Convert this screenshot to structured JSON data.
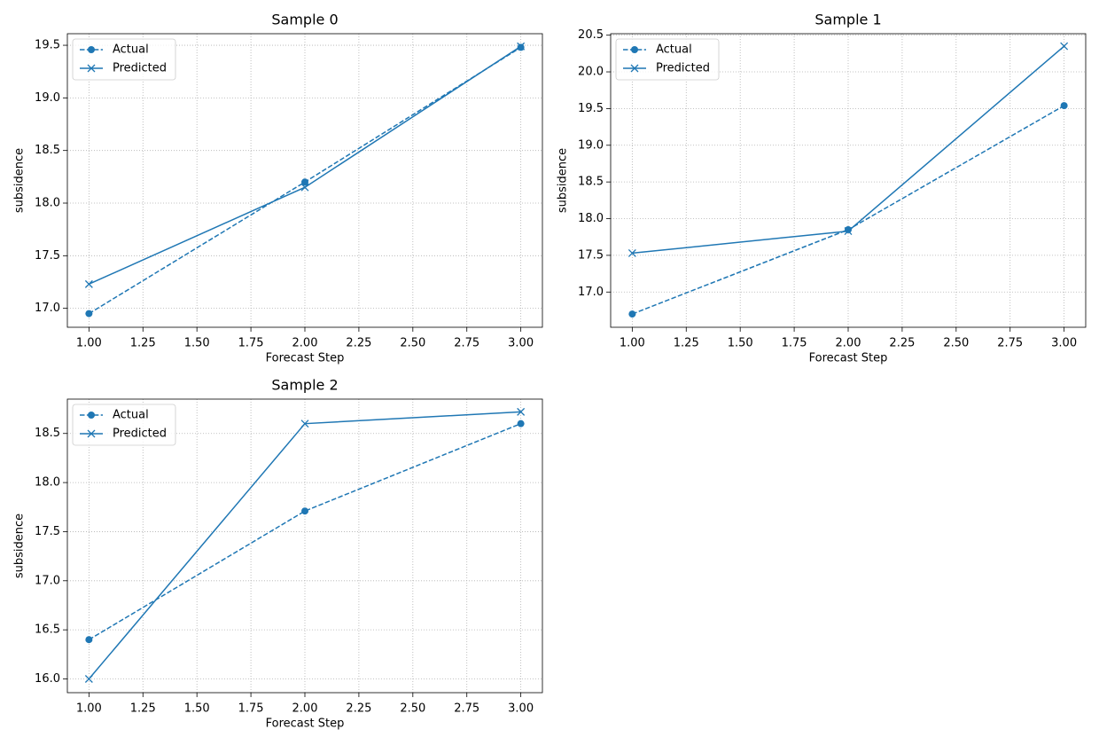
{
  "chart_data": [
    {
      "type": "line",
      "title": "Sample 0",
      "x_label": "Forecast Step",
      "y_label": "subsidence",
      "x": [
        1,
        2,
        3
      ],
      "series": [
        {
          "name": "Actual",
          "color": "#1f77b4",
          "linestyle": "dashed",
          "marker": "circle",
          "values": [
            16.95,
            18.2,
            19.48
          ]
        },
        {
          "name": "Predicted",
          "color": "#1f77b4",
          "linestyle": "solid",
          "marker": "x",
          "values": [
            17.23,
            18.15,
            19.49
          ]
        }
      ],
      "xlim": [
        0.9,
        3.1
      ],
      "xticks": [
        {
          "value": 1,
          "label": "1.00"
        },
        {
          "value": 1.25,
          "label": "1.25"
        },
        {
          "value": 1.5,
          "label": "1.50"
        },
        {
          "value": 1.75,
          "label": "1.75"
        },
        {
          "value": 2,
          "label": "2.00"
        },
        {
          "value": 2.25,
          "label": "2.25"
        },
        {
          "value": 2.5,
          "label": "2.50"
        },
        {
          "value": 2.75,
          "label": "2.75"
        },
        {
          "value": 3,
          "label": "3.00"
        }
      ],
      "ylim": [
        16.82,
        19.61
      ],
      "yticks": [
        {
          "value": 17,
          "label": "17.0"
        },
        17.5,
        {
          "value": 18,
          "label": "18.0"
        },
        18.5,
        {
          "value": 19,
          "label": "19.0"
        },
        19.5
      ],
      "grid": true,
      "legend": "upper left"
    },
    {
      "type": "line",
      "title": "Sample 1",
      "x_label": "Forecast Step",
      "y_label": "subsidence",
      "x": [
        1,
        2,
        3
      ],
      "series": [
        {
          "name": "Actual",
          "color": "#1f77b4",
          "linestyle": "dashed",
          "marker": "circle",
          "values": [
            16.7,
            17.85,
            19.54
          ]
        },
        {
          "name": "Predicted",
          "color": "#1f77b4",
          "linestyle": "solid",
          "marker": "x",
          "values": [
            17.53,
            17.83,
            20.35
          ]
        }
      ],
      "xlim": [
        0.9,
        3.1
      ],
      "xticks": [
        {
          "value": 1,
          "label": "1.00"
        },
        {
          "value": 1.25,
          "label": "1.25"
        },
        {
          "value": 1.5,
          "label": "1.50"
        },
        {
          "value": 1.75,
          "label": "1.75"
        },
        {
          "value": 2,
          "label": "2.00"
        },
        {
          "value": 2.25,
          "label": "2.25"
        },
        {
          "value": 2.5,
          "label": "2.50"
        },
        {
          "value": 2.75,
          "label": "2.75"
        },
        {
          "value": 3,
          "label": "3.00"
        }
      ],
      "ylim": [
        16.52,
        20.52
      ],
      "yticks": [
        {
          "value": 17,
          "label": "17.0"
        },
        17.5,
        {
          "value": 18,
          "label": "18.0"
        },
        18.5,
        {
          "value": 19,
          "label": "19.0"
        },
        19.5,
        {
          "value": 20,
          "label": "20.0"
        },
        20.5
      ],
      "grid": true,
      "legend": "upper left"
    },
    {
      "type": "line",
      "title": "Sample 2",
      "x_label": "Forecast Step",
      "y_label": "subsidence",
      "x": [
        1,
        2,
        3
      ],
      "series": [
        {
          "name": "Actual",
          "color": "#1f77b4",
          "linestyle": "dashed",
          "marker": "circle",
          "values": [
            16.4,
            17.71,
            18.6
          ]
        },
        {
          "name": "Predicted",
          "color": "#1f77b4",
          "linestyle": "solid",
          "marker": "x",
          "values": [
            16.0,
            18.6,
            18.72
          ]
        }
      ],
      "xlim": [
        0.9,
        3.1
      ],
      "xticks": [
        {
          "value": 1,
          "label": "1.00"
        },
        {
          "value": 1.25,
          "label": "1.25"
        },
        {
          "value": 1.5,
          "label": "1.50"
        },
        {
          "value": 1.75,
          "label": "1.75"
        },
        {
          "value": 2,
          "label": "2.00"
        },
        {
          "value": 2.25,
          "label": "2.25"
        },
        {
          "value": 2.5,
          "label": "2.50"
        },
        {
          "value": 2.75,
          "label": "2.75"
        },
        {
          "value": 3,
          "label": "3.00"
        }
      ],
      "ylim": [
        15.86,
        18.85
      ],
      "yticks": [
        {
          "value": 16,
          "label": "16.0"
        },
        16.5,
        {
          "value": 17,
          "label": "17.0"
        },
        17.5,
        {
          "value": 18,
          "label": "18.0"
        },
        18.5
      ],
      "grid": true,
      "legend": "upper left"
    }
  ]
}
